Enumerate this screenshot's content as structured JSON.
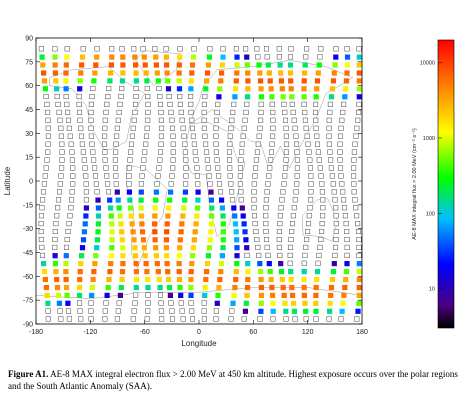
{
  "chart_data": {
    "type": "scatter",
    "xlabel": "Longitude",
    "ylabel": "Latitude",
    "xlim": [
      -180,
      180
    ],
    "ylim": [
      -90,
      90
    ],
    "xticks": [
      "-180",
      "-120",
      "-60",
      "0",
      "60",
      "120",
      "180"
    ],
    "yticks": [
      "90",
      "75",
      "60",
      "45",
      "30",
      "15",
      "0",
      "-15",
      "-30",
      "-45",
      "-60",
      "-75",
      "-90"
    ],
    "colorbar": {
      "label": "AE-8 MAX integral flux > 2.00 MeV (cm⁻² s⁻¹)",
      "scale": "log",
      "range": [
        3,
        20000
      ],
      "ticks": [
        "10000",
        "1000",
        "100",
        "10"
      ]
    },
    "track_longitudes": [
      -170,
      -155,
      -143,
      -128,
      -115,
      -100,
      -88,
      -73,
      -60,
      -45,
      -32,
      -18,
      -5,
      10,
      23,
      38,
      50,
      65,
      78,
      93,
      105,
      120,
      133,
      148,
      160,
      175
    ],
    "sample_latitudes_step": 5,
    "colored_bands": [
      {
        "region": "north-polar",
        "lat_range": [
          55,
          80
        ],
        "flux_range": [
          10,
          10000
        ]
      },
      {
        "region": "south-atlantic-anomaly",
        "lon_range": [
          -90,
          30
        ],
        "lat_range": [
          -45,
          -15
        ],
        "flux_range": [
          10,
          10000
        ]
      },
      {
        "region": "south-polar",
        "lat_range": [
          -82,
          -45
        ],
        "flux_range": [
          10,
          10000
        ]
      }
    ]
  },
  "caption": {
    "label": "Figure A1.",
    "text": " AE-8 MAX integral electron flux > 2.00 MeV at 450 km altitude. Highest exposure occurs over the polar regions and the South Atlantic Anomaly (SAA)."
  }
}
